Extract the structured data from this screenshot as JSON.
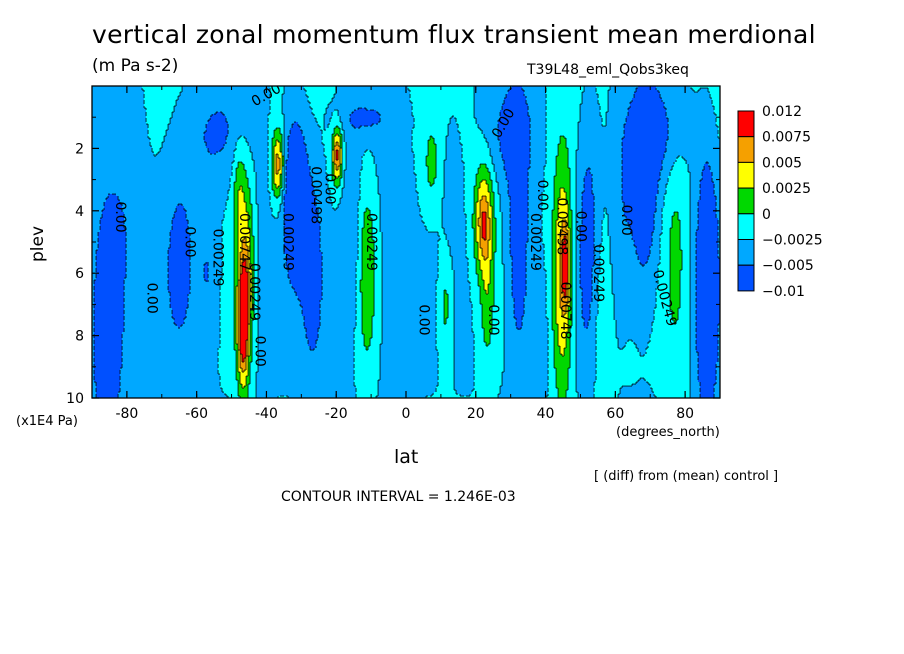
{
  "chart_data": {
    "type": "heatmap",
    "title": "vertical zonal momentum flux transient mean merdional",
    "units": "(m Pa s-2)",
    "run_label": "T39L48_eml_Qobs3keq",
    "xlabel": "lat",
    "x_unit": "(degrees_north)",
    "ylabel": "plev",
    "y_unit": "(x1E4 Pa)",
    "xlim": [
      -90,
      90
    ],
    "ylim": [
      10,
      0
    ],
    "x_ticks": [
      -80,
      -60,
      -40,
      -20,
      0,
      20,
      40,
      60,
      80
    ],
    "y_ticks": [
      2,
      4,
      6,
      8,
      10
    ],
    "colorbar": {
      "levels": [
        "0.012",
        "0.0075",
        "0.005",
        "0.0025",
        "0",
        "−0.0025",
        "−0.005",
        "−0.01"
      ],
      "colors": [
        "#ff0000",
        "#f5a000",
        "#ffff00",
        "#00d800",
        "#00ffff",
        "#00a8ff",
        "#0050ff"
      ]
    },
    "contour_labels": [
      {
        "text": "0.00",
        "lat": -40,
        "p": 0.3,
        "angle": -30
      },
      {
        "text": "0.00",
        "lat": -82,
        "p": 4.2,
        "angle": 90
      },
      {
        "text": "0.00",
        "lat": -73,
        "p": 6.8,
        "angle": 90
      },
      {
        "text": "0.00",
        "lat": -62,
        "p": 5.0,
        "angle": 90
      },
      {
        "text": "0.00249",
        "lat": -54,
        "p": 5.5,
        "angle": 90
      },
      {
        "text": "0.00747",
        "lat": -46.5,
        "p": 5.0,
        "angle": 90
      },
      {
        "text": "0.00249",
        "lat": -43.5,
        "p": 6.6,
        "angle": 90
      },
      {
        "text": "0.00",
        "lat": -42,
        "p": 8.5,
        "angle": 90
      },
      {
        "text": "0.00249",
        "lat": -34,
        "p": 5.0,
        "angle": 90
      },
      {
        "text": "0.00498",
        "lat": -26,
        "p": 3.5,
        "angle": 90
      },
      {
        "text": "0.00",
        "lat": -22,
        "p": 3.3,
        "angle": 90
      },
      {
        "text": "0.00249",
        "lat": -10,
        "p": 5.0,
        "angle": 90
      },
      {
        "text": "0.00",
        "lat": 5,
        "p": 7.5,
        "angle": 90
      },
      {
        "text": "0.00",
        "lat": 25,
        "p": 7.5,
        "angle": 90
      },
      {
        "text": "0.00",
        "lat": 28,
        "p": 1.2,
        "angle": -60
      },
      {
        "text": "0.00249",
        "lat": 37,
        "p": 5.0,
        "angle": 90
      },
      {
        "text": "0.00",
        "lat": 39,
        "p": 3.5,
        "angle": 90
      },
      {
        "text": "0.00498",
        "lat": 44.5,
        "p": 4.5,
        "angle": 90
      },
      {
        "text": "0.00748",
        "lat": 45.5,
        "p": 7.2,
        "angle": 90
      },
      {
        "text": "0.00",
        "lat": 50,
        "p": 4.5,
        "angle": 90
      },
      {
        "text": "0.00249",
        "lat": 55,
        "p": 6.0,
        "angle": 90
      },
      {
        "text": "0.00",
        "lat": 63,
        "p": 4.3,
        "angle": 90
      },
      {
        "text": "0.00249",
        "lat": 74,
        "p": 6.8,
        "angle": 75
      }
    ]
  },
  "diff_note": "[ (diff) from (mean) control ]",
  "contour_interval": "CONTOUR INTERVAL = 1.246E-03"
}
